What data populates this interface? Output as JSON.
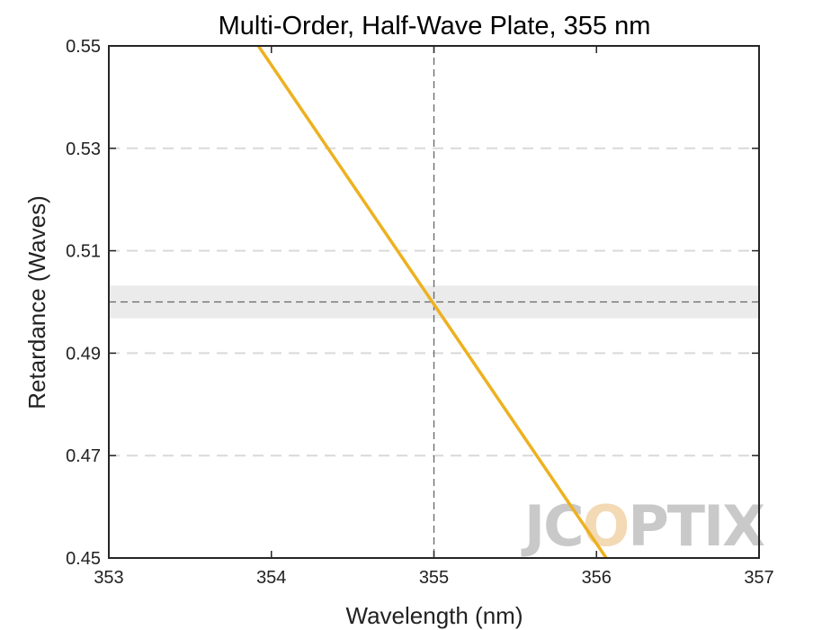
{
  "chart_data": {
    "type": "line",
    "title": "Multi-Order, Half-Wave Plate, 355 nm",
    "xlabel": "Wavelength (nm)",
    "ylabel": "Retardance (Waves)",
    "xlim": [
      353,
      357
    ],
    "ylim": [
      0.45,
      0.55
    ],
    "xticks": [
      353,
      354,
      355,
      356,
      357
    ],
    "yticks": [
      0.45,
      0.47,
      0.49,
      0.51,
      0.53,
      0.55
    ],
    "xtick_labels": [
      "353",
      "354",
      "355",
      "356",
      "357"
    ],
    "ytick_labels": [
      "0.45",
      "0.47",
      "0.49",
      "0.51",
      "0.53",
      "0.55"
    ],
    "grid": "horizontal dashed",
    "series": [
      {
        "x": [
          353.92,
          356.06
        ],
        "y": [
          0.55,
          0.45
        ],
        "color": "#EDB120"
      }
    ],
    "reference_lines": {
      "x": 355,
      "y": 0.5,
      "tolerance_band": [
        0.4968,
        0.5032
      ]
    },
    "colors": {
      "line": "#EDB120",
      "band": "#ebebeb",
      "grid": "#d9d9d9",
      "reference": "#666666",
      "axes": "#262626"
    },
    "watermark": {
      "text": "JCOPTIX",
      "color": "#c9c9c9",
      "accent": "#f3d9b4"
    }
  }
}
